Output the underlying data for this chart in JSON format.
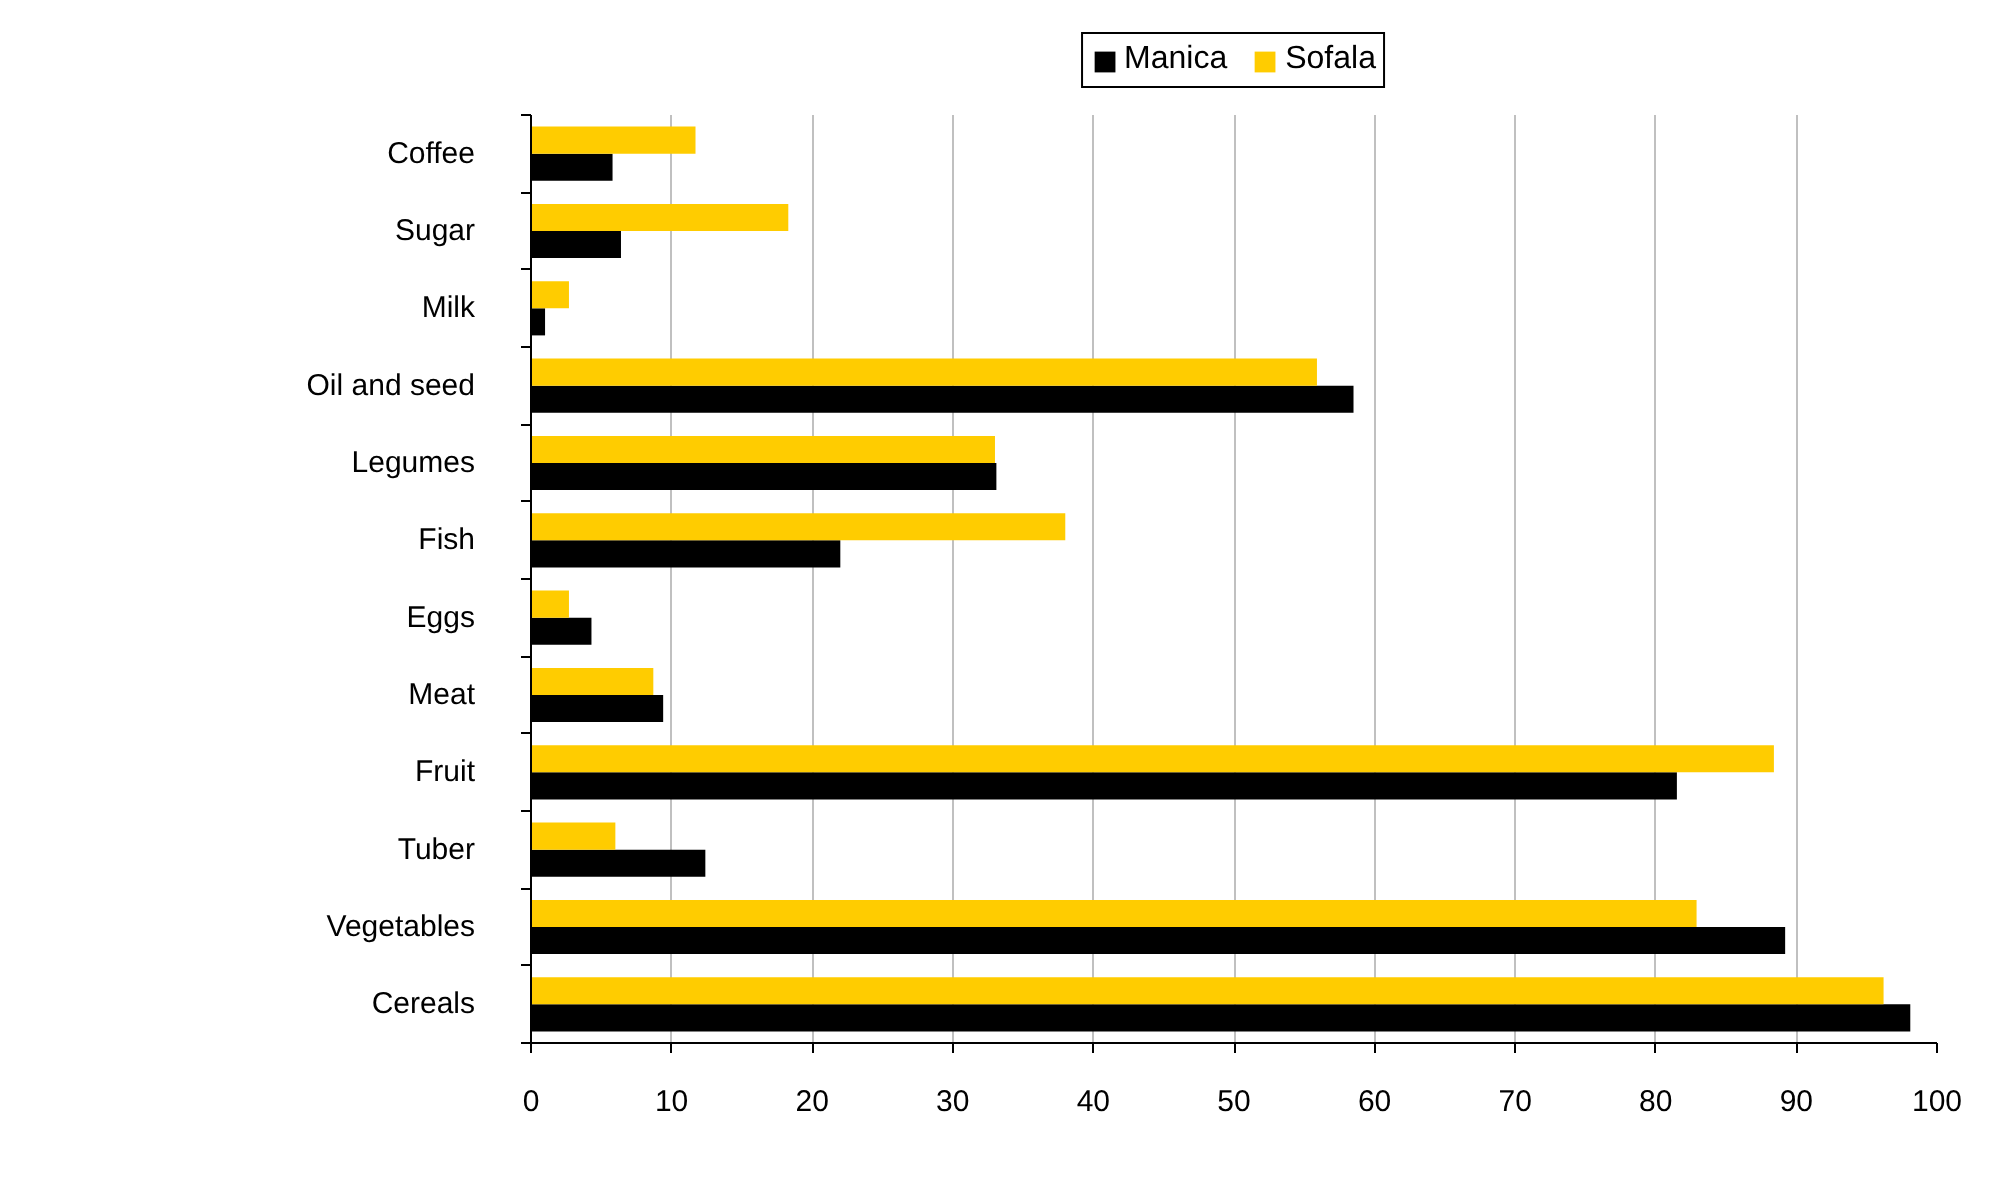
{
  "chart_data": {
    "type": "bar",
    "orientation": "horizontal",
    "categories": [
      "Coffee",
      "Sugar",
      "Milk",
      "Oil and seed",
      "Legumes",
      "Fish",
      "Eggs",
      "Meat",
      "Fruit",
      "Tuber",
      "Vegetables",
      "Cereals"
    ],
    "series": [
      {
        "name": "Manica",
        "color": "#000000",
        "values": [
          5.8,
          6.4,
          1.0,
          58.5,
          33.1,
          22.0,
          4.3,
          9.4,
          81.5,
          12.4,
          89.2,
          98.1
        ]
      },
      {
        "name": "Sofala",
        "color": "#ffcc00",
        "values": [
          11.7,
          18.3,
          2.7,
          55.9,
          33.0,
          38.0,
          2.7,
          8.7,
          88.4,
          6.0,
          82.9,
          96.2
        ]
      }
    ],
    "xlim": [
      0,
      100
    ],
    "xticks": [
      0,
      10,
      20,
      30,
      40,
      50,
      60,
      70,
      80,
      90,
      100
    ],
    "grid": "x",
    "legend": "top"
  }
}
